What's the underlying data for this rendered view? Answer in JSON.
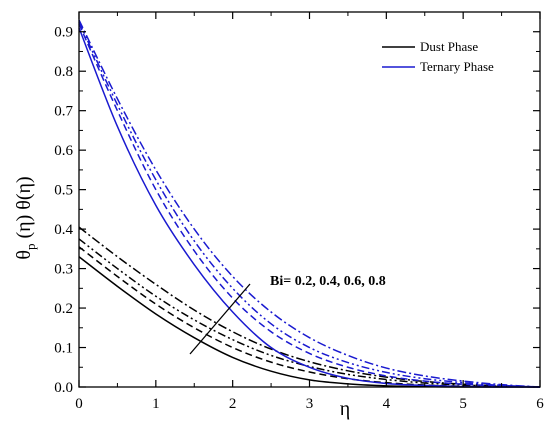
{
  "chart_data": {
    "type": "line",
    "title": "",
    "xlabel": "η",
    "ylabel": "θp (η) θ(η)",
    "ylabel_parts": {
      "theta": "θ",
      "sub": "p",
      "rest": " (η) θ(η)"
    },
    "xlim": [
      0,
      6
    ],
    "ylim": [
      0,
      0.95
    ],
    "x_ticks": [
      "0",
      "1",
      "2",
      "3",
      "4",
      "5",
      "6"
    ],
    "y_ticks": [
      "0.0",
      "0.1",
      "0.2",
      "0.3",
      "0.4",
      "0.5",
      "0.6",
      "0.7",
      "0.8",
      "0.9"
    ],
    "grid": false,
    "legend_position": "top-right",
    "legend": [
      {
        "label": "Dust Phase",
        "color": "#000000"
      },
      {
        "label": "Ternary Phase",
        "color": "#1a1ad0"
      }
    ],
    "annotation": "Bi= 0.2, 0.4, 0.6, 0.8",
    "series": [
      {
        "color": "#000000",
        "dash": "solid",
        "x": [
          0,
          0.5,
          1,
          1.5,
          2,
          2.5,
          3,
          3.5,
          4,
          4.5,
          5,
          5.5,
          6
        ],
        "y": [
          0.33,
          0.255,
          0.185,
          0.125,
          0.075,
          0.04,
          0.018,
          0.008,
          0.003,
          0.001,
          0.0,
          0.0,
          0.0
        ]
      },
      {
        "color": "#000000",
        "dash": "dash",
        "x": [
          0,
          0.5,
          1,
          1.5,
          2,
          2.5,
          3,
          3.5,
          4,
          4.5,
          5,
          5.5,
          6
        ],
        "y": [
          0.355,
          0.28,
          0.21,
          0.15,
          0.1,
          0.063,
          0.038,
          0.021,
          0.011,
          0.005,
          0.002,
          0.001,
          0.0
        ]
      },
      {
        "color": "#000000",
        "dash": "dashdotdot",
        "x": [
          0,
          0.5,
          1,
          1.5,
          2,
          2.5,
          3,
          3.5,
          4,
          4.5,
          5,
          5.5,
          6
        ],
        "y": [
          0.375,
          0.3,
          0.23,
          0.17,
          0.12,
          0.08,
          0.052,
          0.032,
          0.019,
          0.01,
          0.005,
          0.002,
          0.0
        ]
      },
      {
        "color": "#000000",
        "dash": "dashdot",
        "x": [
          0,
          0.5,
          1,
          1.5,
          2,
          2.5,
          3,
          3.5,
          4,
          4.5,
          5,
          5.5,
          6
        ],
        "y": [
          0.405,
          0.33,
          0.26,
          0.195,
          0.14,
          0.096,
          0.064,
          0.041,
          0.025,
          0.014,
          0.007,
          0.003,
          0.0
        ]
      },
      {
        "color": "#1a1ad0",
        "dash": "solid",
        "x": [
          0,
          0.5,
          1,
          1.5,
          2,
          2.5,
          3,
          3.5,
          4,
          4.5,
          5,
          5.5,
          6
        ],
        "y": [
          0.91,
          0.66,
          0.46,
          0.31,
          0.19,
          0.1,
          0.05,
          0.022,
          0.009,
          0.004,
          0.001,
          0.0,
          0.0
        ]
      },
      {
        "color": "#1a1ad0",
        "dash": "dash",
        "x": [
          0,
          0.5,
          1,
          1.5,
          2,
          2.5,
          3,
          3.5,
          4,
          4.5,
          5,
          5.5,
          6
        ],
        "y": [
          0.92,
          0.7,
          0.5,
          0.345,
          0.225,
          0.14,
          0.085,
          0.05,
          0.028,
          0.015,
          0.007,
          0.003,
          0.0
        ]
      },
      {
        "color": "#1a1ad0",
        "dash": "dashdotdot",
        "x": [
          0,
          0.5,
          1,
          1.5,
          2,
          2.5,
          3,
          3.5,
          4,
          4.5,
          5,
          5.5,
          6
        ],
        "y": [
          0.925,
          0.715,
          0.525,
          0.37,
          0.25,
          0.16,
          0.1,
          0.062,
          0.037,
          0.021,
          0.011,
          0.004,
          0.0
        ]
      },
      {
        "color": "#1a1ad0",
        "dash": "dashdot",
        "x": [
          0,
          0.5,
          1,
          1.5,
          2,
          2.5,
          3,
          3.5,
          4,
          4.5,
          5,
          5.5,
          6
        ],
        "y": [
          0.93,
          0.73,
          0.55,
          0.4,
          0.28,
          0.19,
          0.125,
          0.08,
          0.048,
          0.028,
          0.015,
          0.006,
          0.0
        ]
      }
    ]
  }
}
